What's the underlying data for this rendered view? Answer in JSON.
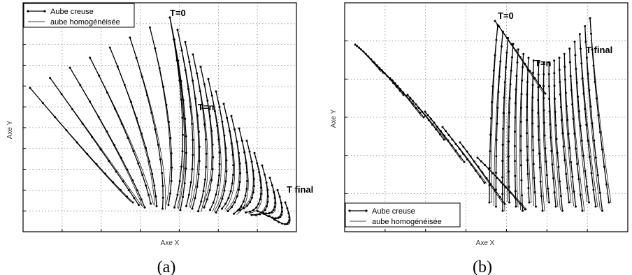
{
  "chart_data": [
    {
      "type": "line",
      "panel_label": "(a)",
      "xlabel": "Axe X",
      "ylabel": "Axe Y",
      "grid": true,
      "legend_position": "top-left",
      "series": [
        {
          "name": "Aube creuse",
          "marker": "dot",
          "line": "solid"
        },
        {
          "name": "aube homogénéisée",
          "marker": "none",
          "line": "thin"
        }
      ],
      "annotations": [
        "T=0",
        "T=n",
        "T final"
      ],
      "num_curves": 24
    },
    {
      "type": "line",
      "panel_label": "(b)",
      "xlabel": "Axe X",
      "ylabel": "Axe Y",
      "grid": true,
      "legend_position": "bottom-left",
      "series": [
        {
          "name": "Aube creuse",
          "marker": "dot",
          "line": "solid"
        },
        {
          "name": "aube homogénéisée",
          "marker": "none",
          "line": "thin"
        }
      ],
      "annotations": [
        "T=0",
        "T=n",
        "T final"
      ],
      "num_curves": 28
    }
  ]
}
